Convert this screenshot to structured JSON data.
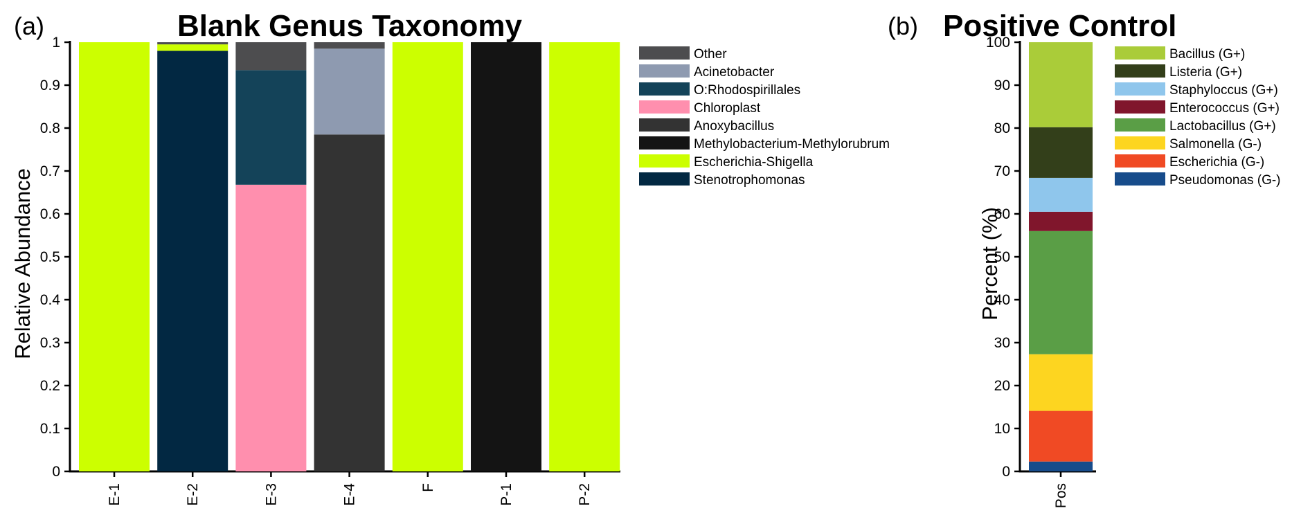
{
  "chart_data": [
    {
      "panel": "(a)",
      "type": "bar",
      "stacked": true,
      "title": "Blank Genus Taxonomy",
      "xlabel": "",
      "ylabel": "Relative Abundance",
      "ylim": [
        0,
        1
      ],
      "yticks": [
        "0",
        "0.1",
        "0.2",
        "0.3",
        "0.4",
        "0.5",
        "0.6",
        "0.7",
        "0.8",
        "0.9",
        "1"
      ],
      "grid": false,
      "legend_position": "right",
      "categories": [
        "E-1",
        "E-2",
        "E-3",
        "E-4",
        "F",
        "P-1",
        "P-2"
      ],
      "series": [
        {
          "name": "Stenotrophomonas",
          "color": "#022842",
          "values": [
            0,
            0.98,
            0,
            0,
            0,
            0,
            0
          ]
        },
        {
          "name": "Escherichia-Shigella",
          "color": "#CCFF00",
          "values": [
            1,
            0.015,
            0,
            0,
            1,
            0,
            1
          ]
        },
        {
          "name": "Methylobacterium-Methylorubrum",
          "color": "#141414",
          "values": [
            0,
            0,
            0,
            0,
            0,
            1,
            0
          ]
        },
        {
          "name": "Anoxybacillus",
          "color": "#333333",
          "values": [
            0,
            0,
            0,
            0.785,
            0,
            0,
            0
          ]
        },
        {
          "name": "Chloroplast",
          "color": "#FF8FAE",
          "values": [
            0,
            0,
            0.668,
            0,
            0,
            0,
            0
          ]
        },
        {
          "name": "O:Rhodospirillales",
          "color": "#144359",
          "values": [
            0,
            0,
            0.267,
            0,
            0,
            0,
            0
          ]
        },
        {
          "name": "Acinetobacter",
          "color": "#8E9AB0",
          "values": [
            0,
            0,
            0,
            0.2,
            0,
            0,
            0
          ]
        },
        {
          "name": "Other",
          "color": "#4D4D4F",
          "values": [
            0,
            0.005,
            0.065,
            0.015,
            0,
            0,
            0
          ]
        }
      ],
      "legend_order": [
        "Other",
        "Acinetobacter",
        "O:Rhodospirillales",
        "Chloroplast",
        "Anoxybacillus",
        "Methylobacterium-Methylorubrum",
        "Escherichia-Shigella",
        "Stenotrophomonas"
      ]
    },
    {
      "panel": "(b)",
      "type": "bar",
      "stacked": true,
      "title": "Positive Control",
      "xlabel": "",
      "ylabel": "Percent (%)",
      "ylim": [
        0,
        100
      ],
      "yticks": [
        "0",
        "10",
        "20",
        "30",
        "40",
        "50",
        "60",
        "70",
        "80",
        "90",
        "100"
      ],
      "grid": false,
      "legend_position": "right",
      "categories": [
        "Pos"
      ],
      "series": [
        {
          "name": "Pseudomonas (G-)",
          "color": "#174C8B",
          "values": [
            2.3
          ]
        },
        {
          "name": "Escherichia (G-)",
          "color": "#F04A24",
          "values": [
            11.8
          ]
        },
        {
          "name": "Salmonella (G-)",
          "color": "#FDD520",
          "values": [
            13.2
          ]
        },
        {
          "name": "Lactobacillus (G+)",
          "color": "#5A9E46",
          "values": [
            28.7
          ]
        },
        {
          "name": "Enterococcus (G+)",
          "color": "#80162C",
          "values": [
            4.5
          ]
        },
        {
          "name": "Staphyloccus (G+)",
          "color": "#8FC6EC",
          "values": [
            7.9
          ]
        },
        {
          "name": "Listeria (G+)",
          "color": "#333F1A",
          "values": [
            11.8
          ]
        },
        {
          "name": "Bacillus (G+)",
          "color": "#AACC39",
          "values": [
            19.8
          ]
        }
      ],
      "legend_order": [
        "Bacillus (G+)",
        "Listeria (G+)",
        "Staphyloccus (G+)",
        "Enterococcus (G+)",
        "Lactobacillus (G+)",
        "Salmonella (G-)",
        "Escherichia (G-)",
        "Pseudomonas (G-)"
      ]
    }
  ]
}
